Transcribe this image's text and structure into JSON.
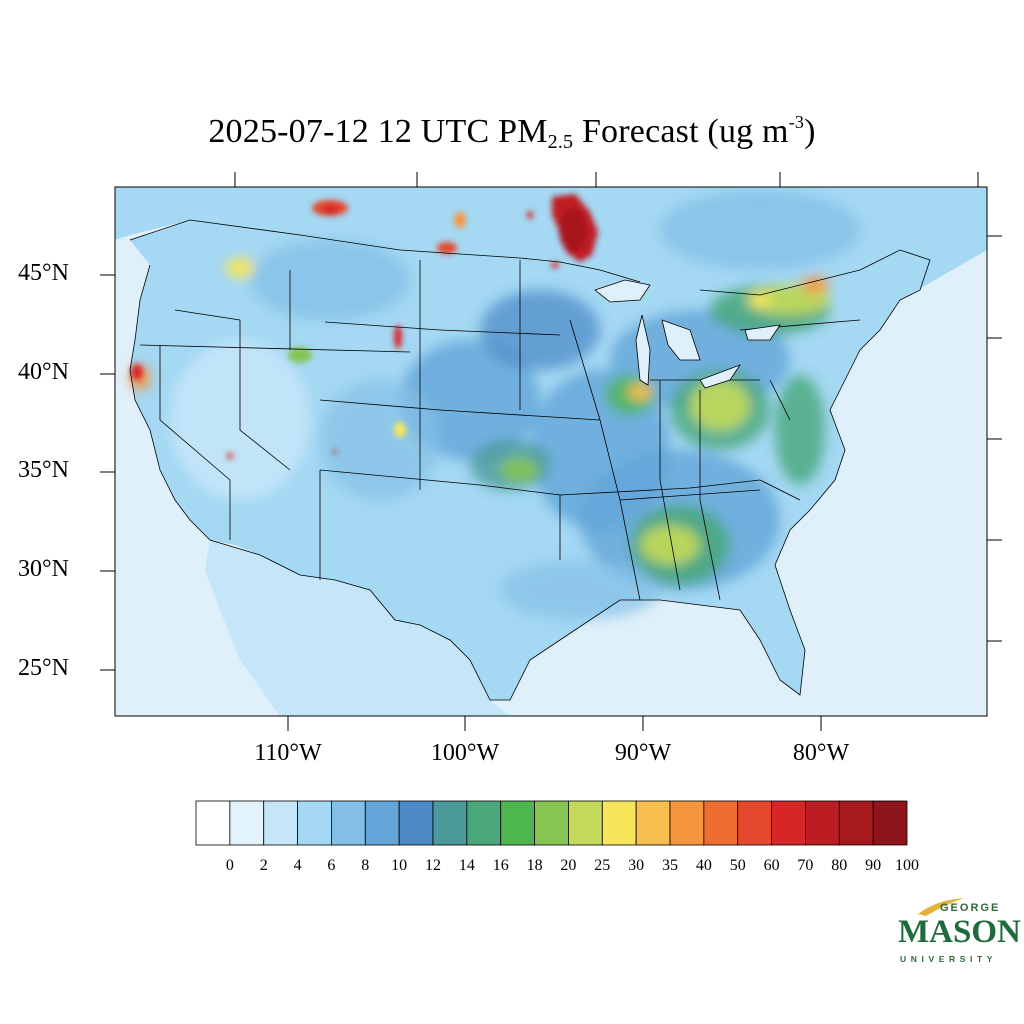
{
  "title": {
    "main": "2025-07-12 12 UTC PM",
    "subscript": "2.5",
    "rest": " Forecast (ug m",
    "superscript": "-3",
    "close": ")"
  },
  "lat_labels": [
    "45°N",
    "40°N",
    "35°N",
    "30°N",
    "25°N"
  ],
  "lon_labels": [
    "110°W",
    "100°W",
    "90°W",
    "80°W"
  ],
  "colorbar": {
    "colors": [
      "#ffffff",
      "#e2f3fc",
      "#c4e6f8",
      "#a4d8f3",
      "#84c0e6",
      "#63a5d8",
      "#4a88c6",
      "#4a9a99",
      "#49a77a",
      "#4db64e",
      "#86c552",
      "#c4d95a",
      "#f7e65a",
      "#f7be4d",
      "#f59540",
      "#ef6d31",
      "#e4472b",
      "#d72628",
      "#be1c23",
      "#a8191e",
      "#8e1419"
    ],
    "labels": [
      "0",
      "2",
      "4",
      "6",
      "8",
      "10",
      "12",
      "14",
      "16",
      "18",
      "20",
      "25",
      "30",
      "35",
      "40",
      "50",
      "60",
      "70",
      "80",
      "90",
      "100"
    ]
  },
  "logo": {
    "george": "GEORGE",
    "mason": "MASON",
    "university": "UNIVERSITY",
    "colors": {
      "green": "#1f6b3b",
      "gold": "#e2b23a"
    }
  },
  "map": {
    "region": "Contiguous United States",
    "ocean_color": "#dff0fa",
    "land_base_color": "#a4d8f3"
  }
}
